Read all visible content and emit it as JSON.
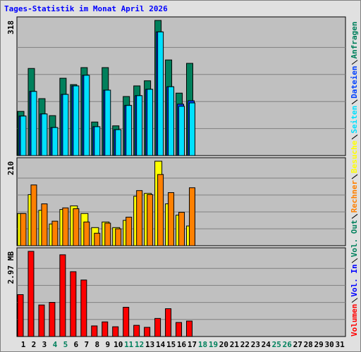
{
  "chart_data": [
    {
      "type": "bar",
      "title": "Tages-Statistik im Monat April 2026",
      "ylim": [
        0,
        318
      ],
      "yticks": [
        318
      ],
      "series": [
        {
          "name": "Anfragen",
          "color": "#00805c",
          "values": [
            104,
            205,
            134,
            94,
            182,
            167,
            207,
            79,
            207,
            70,
            139,
            164,
            176,
            318,
            225,
            147,
            217,
            null,
            null,
            null,
            null,
            null,
            null,
            null,
            null,
            null,
            null,
            null,
            null,
            null,
            null
          ]
        },
        {
          "name": "Dateien",
          "color": "#0040ff",
          "values": [
            93,
            151,
            98,
            66,
            144,
            164,
            189,
            68,
            154,
            61,
            118,
            141,
            156,
            291,
            162,
            121,
            129,
            null,
            null,
            null,
            null,
            null,
            null,
            null,
            null,
            null,
            null,
            null,
            null,
            null,
            null
          ]
        },
        {
          "name": "Seiten",
          "color": "#00e0ff",
          "values": [
            93,
            151,
            98,
            66,
            144,
            164,
            189,
            68,
            154,
            61,
            118,
            141,
            156,
            291,
            162,
            116,
            124,
            null,
            null,
            null,
            null,
            null,
            null,
            null,
            null,
            null,
            null,
            null,
            null,
            null,
            null
          ]
        }
      ]
    },
    {
      "type": "bar",
      "ylim": [
        0,
        210
      ],
      "yticks": [
        210
      ],
      "series": [
        {
          "name": "Besuche",
          "color": "#ffff00",
          "values": [
            80,
            127,
            88,
            54,
            90,
            99,
            80,
            45,
            59,
            45,
            63,
            123,
            130,
            210,
            104,
            76,
            49,
            null,
            null,
            null,
            null,
            null,
            null,
            null,
            null,
            null,
            null,
            null,
            null,
            null,
            null
          ]
        },
        {
          "name": "Rechner",
          "color": "#ff8000",
          "values": [
            80,
            151,
            104,
            61,
            94,
            92,
            59,
            31,
            56,
            42,
            71,
            137,
            127,
            177,
            132,
            83,
            144,
            null,
            null,
            null,
            null,
            null,
            null,
            null,
            null,
            null,
            null,
            null,
            null,
            null,
            null
          ]
        }
      ]
    },
    {
      "type": "bar",
      "ylim": [
        0,
        2.97
      ],
      "yticks": [
        {
          "value": 2.97,
          "label": "2.97 MB"
        }
      ],
      "categories": [
        "1",
        "2",
        "3",
        "4",
        "5",
        "6",
        "7",
        "8",
        "9",
        "10",
        "11",
        "12",
        "13",
        "14",
        "15",
        "16",
        "17",
        "18",
        "19",
        "20",
        "21",
        "22",
        "23",
        "24",
        "25",
        "26",
        "27",
        "28",
        "29",
        "30",
        "31"
      ],
      "category_colors": [
        "#000000",
        "#000000",
        "#000000",
        "#00805c",
        "#00805c",
        "#000000",
        "#000000",
        "#000000",
        "#000000",
        "#000000",
        "#00805c",
        "#00805c",
        "#000000",
        "#000000",
        "#000000",
        "#000000",
        "#000000",
        "#00805c",
        "#00805c",
        "#000000",
        "#000000",
        "#000000",
        "#000000",
        "#000000",
        "#00805c",
        "#00805c",
        "#000000",
        "#000000",
        "#000000",
        "#000000",
        "#000000"
      ],
      "series": [
        {
          "name": "Volumen",
          "color": "#ff0000",
          "values": [
            1.46,
            2.97,
            1.1,
            1.19,
            2.85,
            2.26,
            1.97,
            0.37,
            0.51,
            0.34,
            1.02,
            0.39,
            0.32,
            0.63,
            0.97,
            0.49,
            0.54,
            null,
            null,
            null,
            null,
            null,
            null,
            null,
            null,
            null,
            null,
            null,
            null,
            null,
            null
          ]
        },
        {
          "name": "Vol. In",
          "color": "#0000ff"
        },
        {
          "name": "Vol. Out",
          "color": "#00805c"
        }
      ]
    }
  ]
}
